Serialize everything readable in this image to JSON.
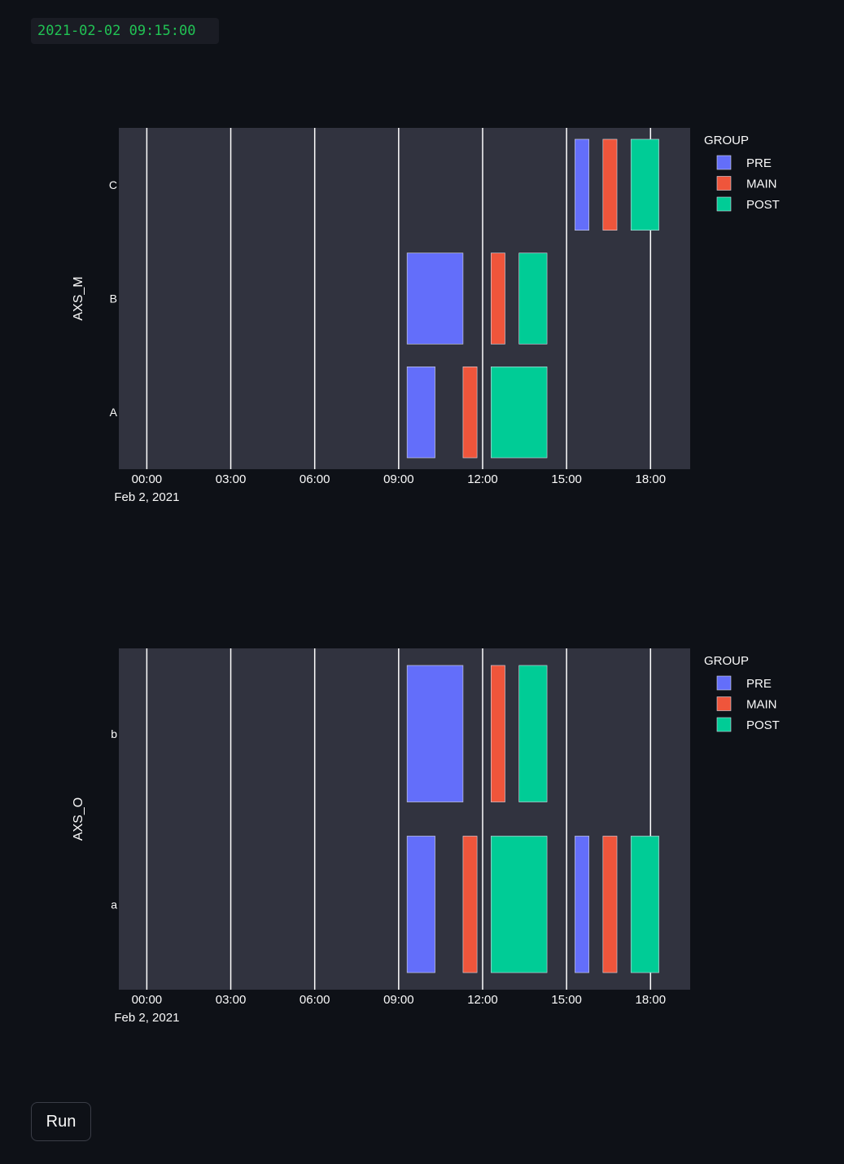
{
  "timestamp": "2021-02-02 09:15:00",
  "run_button_label": "Run",
  "colors": {
    "background": "#0e1117",
    "plot_background": "#31333f",
    "PRE": "#636efa",
    "MAIN": "#ef553b",
    "POST": "#00cc96",
    "timestamp_text": "#21c354"
  },
  "chart_data": [
    {
      "type": "timeline",
      "ylabel": "AXS_M",
      "categories": [
        "A",
        "B",
        "C"
      ],
      "x_ticks": [
        "00:00",
        "03:00",
        "06:00",
        "09:00",
        "12:00",
        "15:00",
        "18:00"
      ],
      "x_date_label": "Feb 2, 2021",
      "xlim": [
        "2021-02-01 23:00",
        "2021-02-02 19:25"
      ],
      "vlines": [
        "00:00",
        "03:00",
        "06:00",
        "09:00",
        "12:00",
        "15:00",
        "18:00"
      ],
      "legend": {
        "title": "GROUP",
        "items": [
          "PRE",
          "MAIN",
          "POST"
        ],
        "placement": "top-right"
      },
      "bars": [
        {
          "category": "A",
          "group": "PRE",
          "start": "09:18",
          "end": "10:18"
        },
        {
          "category": "A",
          "group": "MAIN",
          "start": "11:18",
          "end": "11:48"
        },
        {
          "category": "A",
          "group": "POST",
          "start": "12:18",
          "end": "14:18"
        },
        {
          "category": "B",
          "group": "PRE",
          "start": "09:18",
          "end": "11:18"
        },
        {
          "category": "B",
          "group": "MAIN",
          "start": "12:18",
          "end": "12:48"
        },
        {
          "category": "B",
          "group": "POST",
          "start": "13:18",
          "end": "14:18"
        },
        {
          "category": "C",
          "group": "PRE",
          "start": "15:18",
          "end": "15:48"
        },
        {
          "category": "C",
          "group": "MAIN",
          "start": "16:18",
          "end": "16:48"
        },
        {
          "category": "C",
          "group": "POST",
          "start": "17:18",
          "end": "18:18"
        }
      ]
    },
    {
      "type": "timeline",
      "ylabel": "AXS_O",
      "categories": [
        "a",
        "b"
      ],
      "x_ticks": [
        "00:00",
        "03:00",
        "06:00",
        "09:00",
        "12:00",
        "15:00",
        "18:00"
      ],
      "x_date_label": "Feb 2, 2021",
      "xlim": [
        "2021-02-01 23:00",
        "2021-02-02 19:25"
      ],
      "vlines": [
        "00:00",
        "03:00",
        "06:00",
        "09:00",
        "12:00",
        "15:00",
        "18:00"
      ],
      "legend": {
        "title": "GROUP",
        "items": [
          "PRE",
          "MAIN",
          "POST"
        ],
        "placement": "top-right"
      },
      "bars": [
        {
          "category": "a",
          "group": "PRE",
          "start": "09:18",
          "end": "10:18"
        },
        {
          "category": "a",
          "group": "MAIN",
          "start": "11:18",
          "end": "11:48"
        },
        {
          "category": "a",
          "group": "POST",
          "start": "12:18",
          "end": "14:18"
        },
        {
          "category": "a",
          "group": "PRE",
          "start": "15:18",
          "end": "15:48"
        },
        {
          "category": "a",
          "group": "MAIN",
          "start": "16:18",
          "end": "16:48"
        },
        {
          "category": "a",
          "group": "POST",
          "start": "17:18",
          "end": "18:18"
        },
        {
          "category": "b",
          "group": "PRE",
          "start": "09:18",
          "end": "11:18"
        },
        {
          "category": "b",
          "group": "MAIN",
          "start": "12:18",
          "end": "12:48"
        },
        {
          "category": "b",
          "group": "POST",
          "start": "13:18",
          "end": "14:18"
        }
      ]
    }
  ]
}
